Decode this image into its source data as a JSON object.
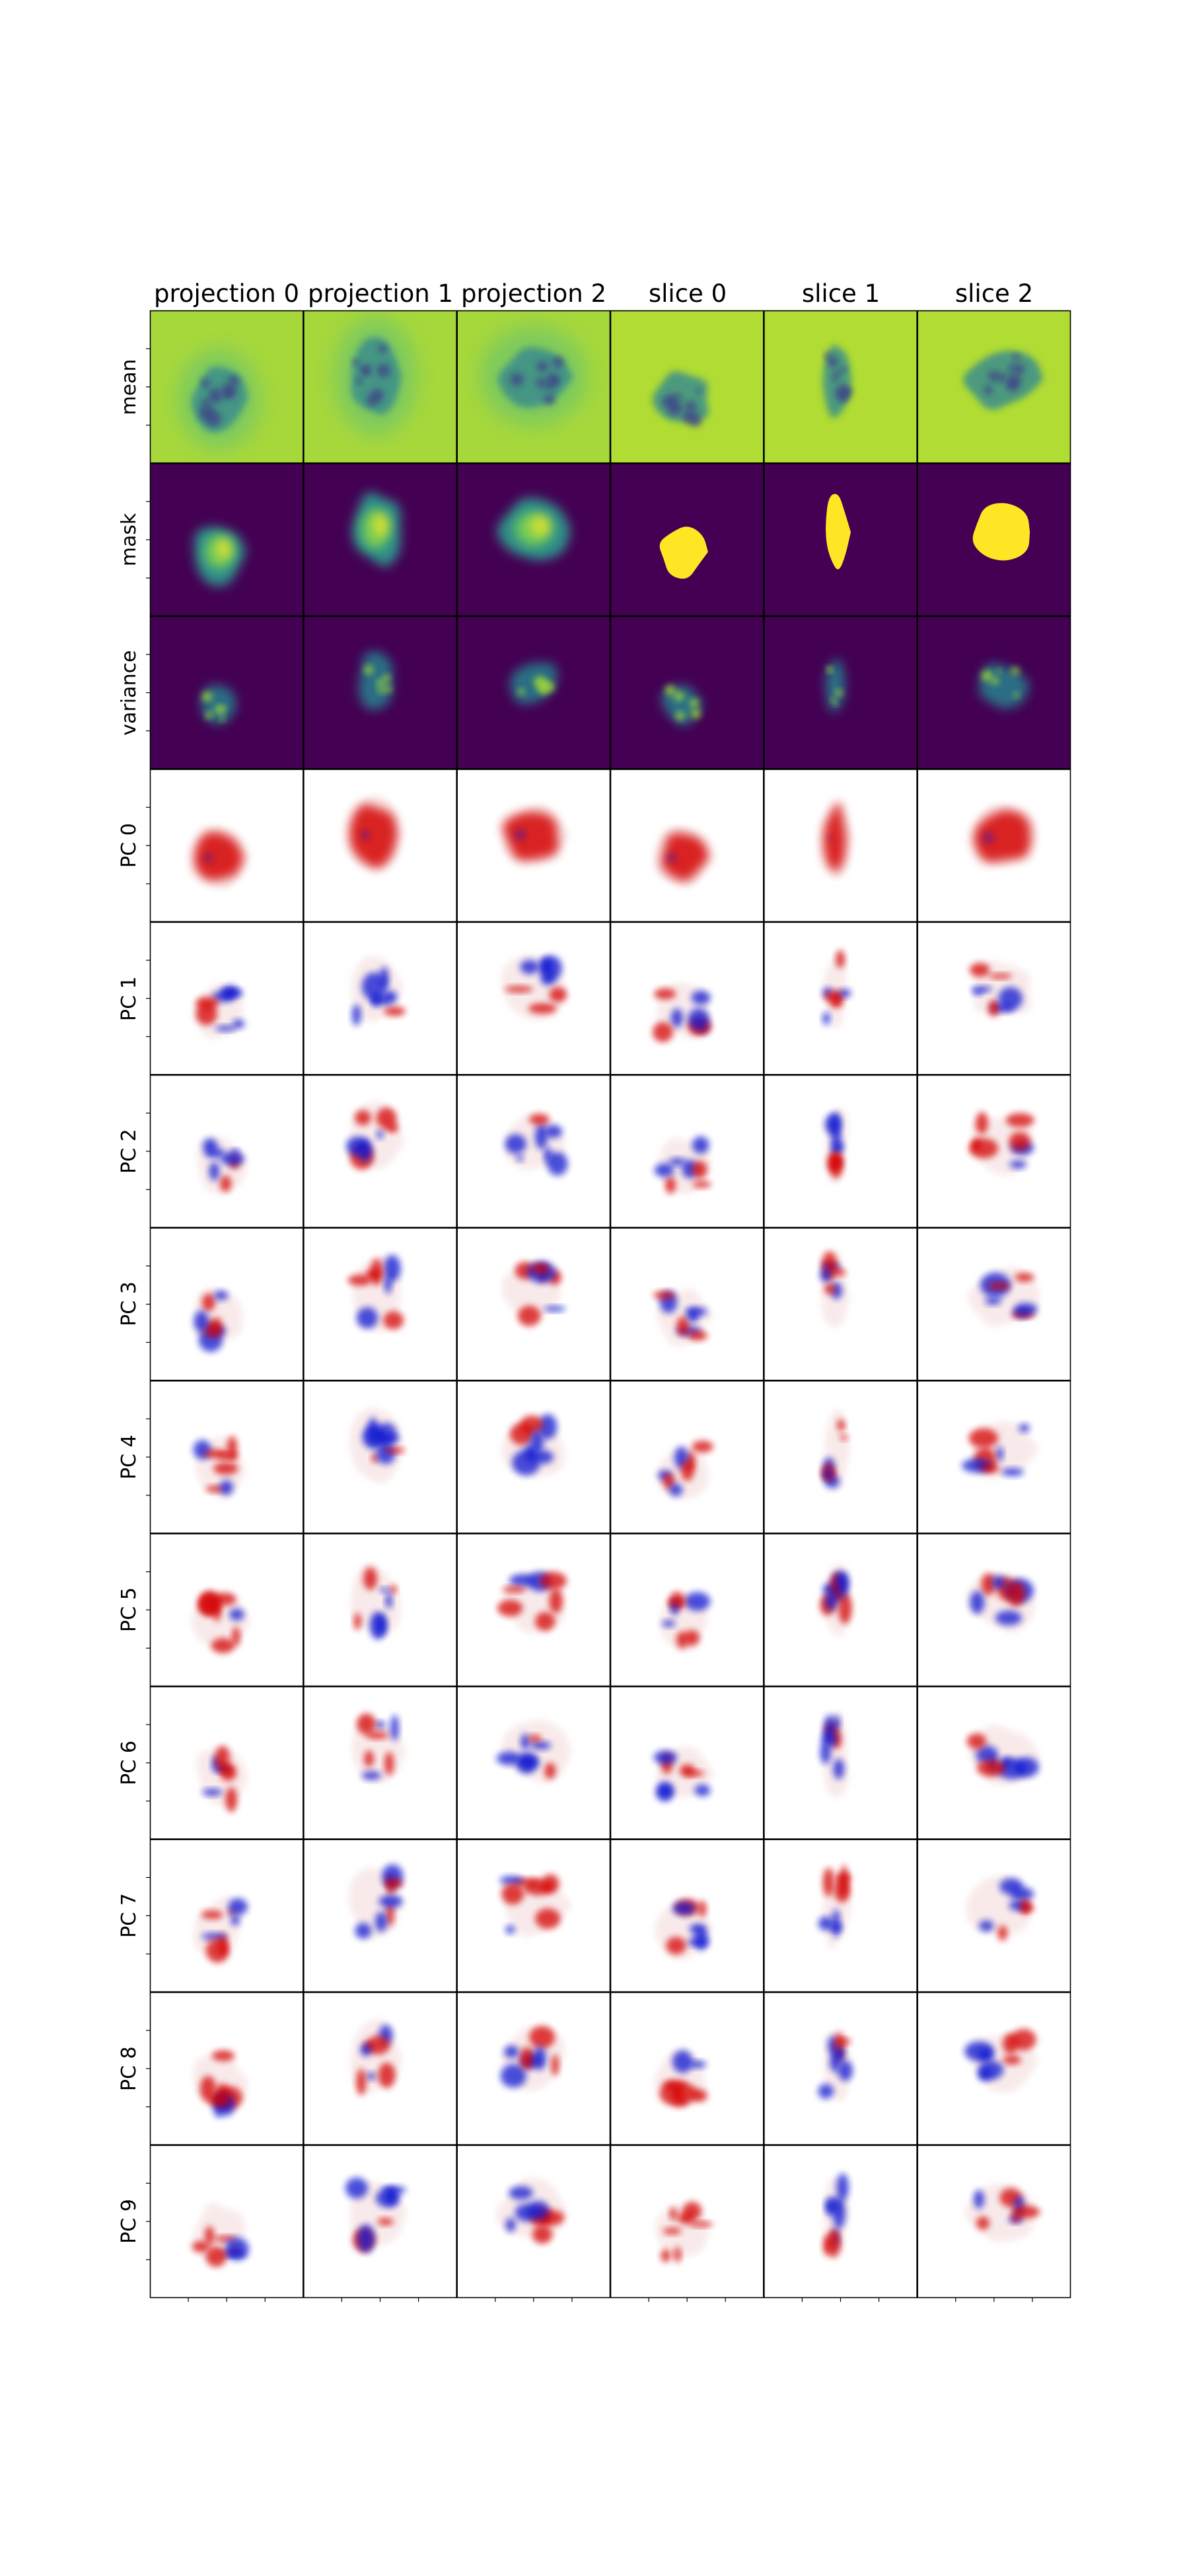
{
  "figure": {
    "column_titles": [
      "projection 0",
      "projection 1",
      "projection 2",
      "slice 0",
      "slice 1",
      "slice 2"
    ],
    "row_labels": [
      "mean",
      "mask",
      "variance",
      "PC 0",
      "PC 1",
      "PC 2",
      "PC 3",
      "PC 4",
      "PC 5",
      "PC 6",
      "PC 7",
      "PC 8",
      "PC 9"
    ],
    "row_styles": [
      "mean",
      "mask",
      "variance",
      "pc",
      "pc",
      "pc",
      "pc",
      "pc",
      "pc",
      "pc",
      "pc",
      "pc",
      "pc"
    ],
    "colormaps": {
      "viridis_bg_projection": "#a6d83c",
      "viridis_bg_slice": "#b0dc33",
      "viridis_mid": "#3a8e8c",
      "viridis_dark": "#404688",
      "viridis_low": "#440154",
      "viridis_high": "#fde725",
      "diverging_positive": "#d40000",
      "diverging_negative": "#0a14d0",
      "diverging_zero": "#ffffff"
    }
  }
}
